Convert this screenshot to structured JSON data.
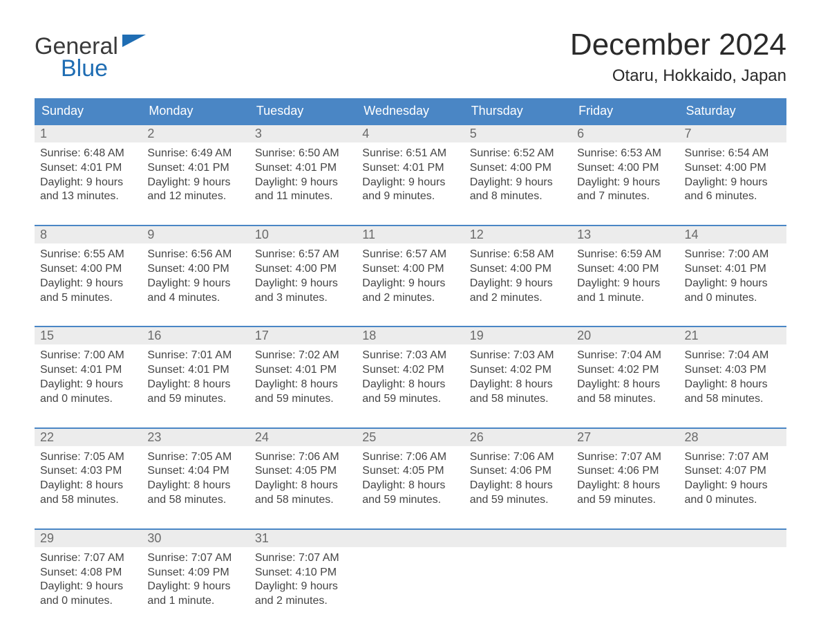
{
  "logo": {
    "text_top": "General",
    "text_bottom": "Blue",
    "top_color": "#3a3a3a",
    "bottom_color": "#1f6db3",
    "flag_color": "#1f6db3"
  },
  "title": "December 2024",
  "location": "Otaru, Hokkaido, Japan",
  "colors": {
    "header_bg": "#4a86c5",
    "header_text": "#ffffff",
    "week_rule": "#4a86c5",
    "daynum_bg": "#ececec",
    "daynum_text": "#6a6a6a",
    "body_text": "#444444",
    "page_bg": "#ffffff"
  },
  "typography": {
    "title_fontsize": 44,
    "location_fontsize": 24,
    "header_fontsize": 18,
    "daynum_fontsize": 18,
    "body_fontsize": 16,
    "font_family": "Arial"
  },
  "day_headers": [
    "Sunday",
    "Monday",
    "Tuesday",
    "Wednesday",
    "Thursday",
    "Friday",
    "Saturday"
  ],
  "weeks": [
    [
      {
        "num": "1",
        "sunrise": "Sunrise: 6:48 AM",
        "sunset": "Sunset: 4:01 PM",
        "d1": "Daylight: 9 hours",
        "d2": "and 13 minutes."
      },
      {
        "num": "2",
        "sunrise": "Sunrise: 6:49 AM",
        "sunset": "Sunset: 4:01 PM",
        "d1": "Daylight: 9 hours",
        "d2": "and 12 minutes."
      },
      {
        "num": "3",
        "sunrise": "Sunrise: 6:50 AM",
        "sunset": "Sunset: 4:01 PM",
        "d1": "Daylight: 9 hours",
        "d2": "and 11 minutes."
      },
      {
        "num": "4",
        "sunrise": "Sunrise: 6:51 AM",
        "sunset": "Sunset: 4:01 PM",
        "d1": "Daylight: 9 hours",
        "d2": "and 9 minutes."
      },
      {
        "num": "5",
        "sunrise": "Sunrise: 6:52 AM",
        "sunset": "Sunset: 4:00 PM",
        "d1": "Daylight: 9 hours",
        "d2": "and 8 minutes."
      },
      {
        "num": "6",
        "sunrise": "Sunrise: 6:53 AM",
        "sunset": "Sunset: 4:00 PM",
        "d1": "Daylight: 9 hours",
        "d2": "and 7 minutes."
      },
      {
        "num": "7",
        "sunrise": "Sunrise: 6:54 AM",
        "sunset": "Sunset: 4:00 PM",
        "d1": "Daylight: 9 hours",
        "d2": "and 6 minutes."
      }
    ],
    [
      {
        "num": "8",
        "sunrise": "Sunrise: 6:55 AM",
        "sunset": "Sunset: 4:00 PM",
        "d1": "Daylight: 9 hours",
        "d2": "and 5 minutes."
      },
      {
        "num": "9",
        "sunrise": "Sunrise: 6:56 AM",
        "sunset": "Sunset: 4:00 PM",
        "d1": "Daylight: 9 hours",
        "d2": "and 4 minutes."
      },
      {
        "num": "10",
        "sunrise": "Sunrise: 6:57 AM",
        "sunset": "Sunset: 4:00 PM",
        "d1": "Daylight: 9 hours",
        "d2": "and 3 minutes."
      },
      {
        "num": "11",
        "sunrise": "Sunrise: 6:57 AM",
        "sunset": "Sunset: 4:00 PM",
        "d1": "Daylight: 9 hours",
        "d2": "and 2 minutes."
      },
      {
        "num": "12",
        "sunrise": "Sunrise: 6:58 AM",
        "sunset": "Sunset: 4:00 PM",
        "d1": "Daylight: 9 hours",
        "d2": "and 2 minutes."
      },
      {
        "num": "13",
        "sunrise": "Sunrise: 6:59 AM",
        "sunset": "Sunset: 4:00 PM",
        "d1": "Daylight: 9 hours",
        "d2": "and 1 minute."
      },
      {
        "num": "14",
        "sunrise": "Sunrise: 7:00 AM",
        "sunset": "Sunset: 4:01 PM",
        "d1": "Daylight: 9 hours",
        "d2": "and 0 minutes."
      }
    ],
    [
      {
        "num": "15",
        "sunrise": "Sunrise: 7:00 AM",
        "sunset": "Sunset: 4:01 PM",
        "d1": "Daylight: 9 hours",
        "d2": "and 0 minutes."
      },
      {
        "num": "16",
        "sunrise": "Sunrise: 7:01 AM",
        "sunset": "Sunset: 4:01 PM",
        "d1": "Daylight: 8 hours",
        "d2": "and 59 minutes."
      },
      {
        "num": "17",
        "sunrise": "Sunrise: 7:02 AM",
        "sunset": "Sunset: 4:01 PM",
        "d1": "Daylight: 8 hours",
        "d2": "and 59 minutes."
      },
      {
        "num": "18",
        "sunrise": "Sunrise: 7:03 AM",
        "sunset": "Sunset: 4:02 PM",
        "d1": "Daylight: 8 hours",
        "d2": "and 59 minutes."
      },
      {
        "num": "19",
        "sunrise": "Sunrise: 7:03 AM",
        "sunset": "Sunset: 4:02 PM",
        "d1": "Daylight: 8 hours",
        "d2": "and 58 minutes."
      },
      {
        "num": "20",
        "sunrise": "Sunrise: 7:04 AM",
        "sunset": "Sunset: 4:02 PM",
        "d1": "Daylight: 8 hours",
        "d2": "and 58 minutes."
      },
      {
        "num": "21",
        "sunrise": "Sunrise: 7:04 AM",
        "sunset": "Sunset: 4:03 PM",
        "d1": "Daylight: 8 hours",
        "d2": "and 58 minutes."
      }
    ],
    [
      {
        "num": "22",
        "sunrise": "Sunrise: 7:05 AM",
        "sunset": "Sunset: 4:03 PM",
        "d1": "Daylight: 8 hours",
        "d2": "and 58 minutes."
      },
      {
        "num": "23",
        "sunrise": "Sunrise: 7:05 AM",
        "sunset": "Sunset: 4:04 PM",
        "d1": "Daylight: 8 hours",
        "d2": "and 58 minutes."
      },
      {
        "num": "24",
        "sunrise": "Sunrise: 7:06 AM",
        "sunset": "Sunset: 4:05 PM",
        "d1": "Daylight: 8 hours",
        "d2": "and 58 minutes."
      },
      {
        "num": "25",
        "sunrise": "Sunrise: 7:06 AM",
        "sunset": "Sunset: 4:05 PM",
        "d1": "Daylight: 8 hours",
        "d2": "and 59 minutes."
      },
      {
        "num": "26",
        "sunrise": "Sunrise: 7:06 AM",
        "sunset": "Sunset: 4:06 PM",
        "d1": "Daylight: 8 hours",
        "d2": "and 59 minutes."
      },
      {
        "num": "27",
        "sunrise": "Sunrise: 7:07 AM",
        "sunset": "Sunset: 4:06 PM",
        "d1": "Daylight: 8 hours",
        "d2": "and 59 minutes."
      },
      {
        "num": "28",
        "sunrise": "Sunrise: 7:07 AM",
        "sunset": "Sunset: 4:07 PM",
        "d1": "Daylight: 9 hours",
        "d2": "and 0 minutes."
      }
    ],
    [
      {
        "num": "29",
        "sunrise": "Sunrise: 7:07 AM",
        "sunset": "Sunset: 4:08 PM",
        "d1": "Daylight: 9 hours",
        "d2": "and 0 minutes."
      },
      {
        "num": "30",
        "sunrise": "Sunrise: 7:07 AM",
        "sunset": "Sunset: 4:09 PM",
        "d1": "Daylight: 9 hours",
        "d2": "and 1 minute."
      },
      {
        "num": "31",
        "sunrise": "Sunrise: 7:07 AM",
        "sunset": "Sunset: 4:10 PM",
        "d1": "Daylight: 9 hours",
        "d2": "and 2 minutes."
      },
      null,
      null,
      null,
      null
    ]
  ]
}
